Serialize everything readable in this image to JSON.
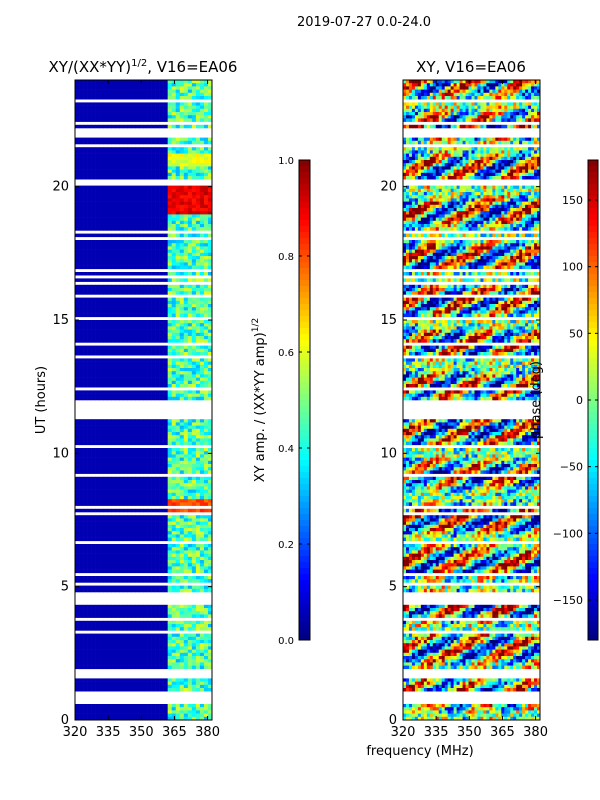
{
  "figure": {
    "suptitle": "2019-07-27 0.0-24.0",
    "xlabel": "frequency (MHz)"
  },
  "chart_data": [
    {
      "type": "heatmap",
      "title": "XY/(XX*YY)",
      "title_exp": "1/2",
      "title_suffix": ", V16=EA06",
      "xlabel": "",
      "ylabel": "UT (hours)",
      "xlim": [
        320,
        382
      ],
      "ylim": [
        0,
        24
      ],
      "xticks": [
        "320",
        "335",
        "350",
        "365",
        "380"
      ],
      "xtick_values": [
        320,
        335,
        350,
        365,
        380
      ],
      "yticks": [
        "0",
        "5",
        "10",
        "15",
        "20"
      ],
      "ytick_values": [
        0,
        5,
        10,
        15,
        20
      ],
      "colorbar": {
        "label": "XY amp. / (XX*YY amp)",
        "label_exp": "1/2",
        "vmin": 0.0,
        "vmax": 1.0,
        "ticks": [
          "0.0",
          "0.2",
          "0.4",
          "0.6",
          "0.8",
          "1.0"
        ],
        "tick_values": [
          0.0,
          0.2,
          0.4,
          0.6,
          0.8,
          1.0
        ]
      },
      "bright_hours": [
        {
          "from": 7.7,
          "to": 8.3,
          "value": 0.85
        },
        {
          "from": 19.0,
          "to": 20.2,
          "value": 0.95
        },
        {
          "from": 20.8,
          "to": 21.2,
          "value": 0.65
        }
      ],
      "signal_freq_range_mhz": [
        362,
        382
      ],
      "background_value": 0.05
    },
    {
      "type": "heatmap",
      "title": "XY, V16=EA06",
      "xlabel": "",
      "ylabel": "",
      "xlim": [
        320,
        382
      ],
      "ylim": [
        0,
        24
      ],
      "xticks": [
        "320",
        "335",
        "350",
        "365",
        "380"
      ],
      "xtick_values": [
        320,
        335,
        350,
        365,
        380
      ],
      "yticks": [
        "0",
        "5",
        "10",
        "15",
        "20"
      ],
      "ytick_values": [
        0,
        5,
        10,
        15,
        20
      ],
      "colorbar": {
        "label": "phase (deg)",
        "vmin": -180,
        "vmax": 180,
        "ticks": [
          "−150",
          "−100",
          "−50",
          "0",
          "50",
          "100",
          "150"
        ],
        "tick_values": [
          -150,
          -100,
          -50,
          0,
          50,
          100,
          150
        ]
      }
    }
  ],
  "colors": {
    "jet": [
      "#00007f",
      "#0000ff",
      "#007fff",
      "#00ffff",
      "#7fff7f",
      "#ffff00",
      "#ff7f00",
      "#ff0000",
      "#7f0000"
    ],
    "gap": "#ffffff",
    "axis": "#000000"
  }
}
